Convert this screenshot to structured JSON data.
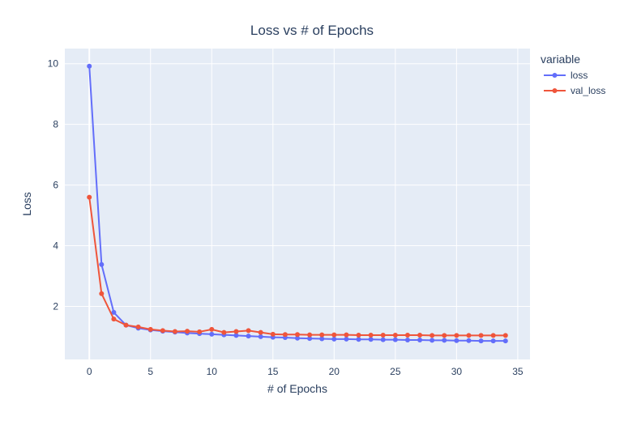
{
  "chart_data": {
    "type": "line",
    "title": "Loss vs # of Epochs",
    "xlabel": "# of Epochs",
    "ylabel": "Loss",
    "xlim": [
      -2,
      36
    ],
    "ylim": [
      0.25,
      10.5
    ],
    "x_ticks": [
      0,
      5,
      10,
      15,
      20,
      25,
      30,
      35
    ],
    "y_ticks": [
      2,
      4,
      6,
      8,
      10
    ],
    "grid": true,
    "legend": {
      "title": "variable",
      "placement": "top-right"
    },
    "background": "#e5ecf6",
    "series": [
      {
        "name": "loss",
        "color": "#636efa",
        "x": [
          0,
          1,
          2,
          3,
          4,
          5,
          6,
          7,
          8,
          9,
          10,
          11,
          12,
          13,
          14,
          15,
          16,
          17,
          18,
          19,
          20,
          21,
          22,
          23,
          24,
          25,
          26,
          27,
          28,
          29,
          30,
          31,
          32,
          33,
          34
        ],
        "values": [
          9.92,
          3.38,
          1.8,
          1.38,
          1.28,
          1.22,
          1.18,
          1.15,
          1.12,
          1.1,
          1.08,
          1.06,
          1.04,
          1.02,
          1.0,
          0.98,
          0.97,
          0.95,
          0.94,
          0.93,
          0.92,
          0.92,
          0.91,
          0.91,
          0.9,
          0.9,
          0.89,
          0.89,
          0.88,
          0.88,
          0.87,
          0.87,
          0.86,
          0.86,
          0.86
        ]
      },
      {
        "name": "val_loss",
        "color": "#ef553b",
        "x": [
          0,
          1,
          2,
          3,
          4,
          5,
          6,
          7,
          8,
          9,
          10,
          11,
          12,
          13,
          14,
          15,
          16,
          17,
          18,
          19,
          20,
          21,
          22,
          23,
          24,
          25,
          26,
          27,
          28,
          29,
          30,
          31,
          32,
          33,
          34
        ],
        "values": [
          5.6,
          2.42,
          1.58,
          1.38,
          1.32,
          1.24,
          1.2,
          1.17,
          1.18,
          1.16,
          1.24,
          1.14,
          1.17,
          1.2,
          1.14,
          1.08,
          1.07,
          1.07,
          1.06,
          1.06,
          1.06,
          1.06,
          1.05,
          1.05,
          1.05,
          1.05,
          1.05,
          1.05,
          1.04,
          1.04,
          1.04,
          1.04,
          1.04,
          1.04,
          1.04
        ]
      }
    ]
  }
}
